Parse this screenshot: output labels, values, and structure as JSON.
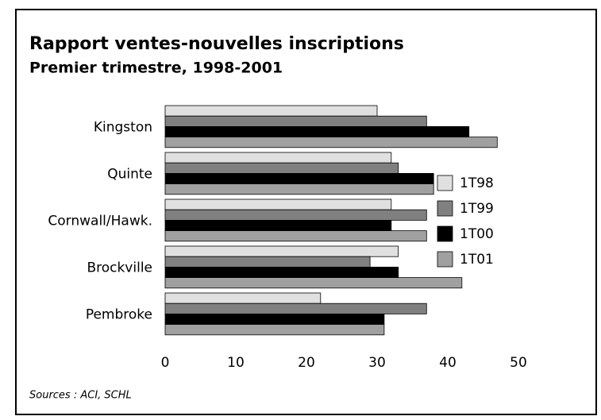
{
  "chart_data": {
    "type": "bar",
    "orientation": "horizontal",
    "title": "Rapport ventes-nouvelles inscriptions",
    "subtitle": "Premier trimestre, 1998-2001",
    "categories": [
      "Kingston",
      "Quinte",
      "Cornwall/Hawk.",
      "Brockville",
      "Pembroke"
    ],
    "series": [
      {
        "name": "1T98",
        "color": "#e0e0e0",
        "values": [
          30,
          32,
          32,
          33,
          22
        ]
      },
      {
        "name": "1T99",
        "color": "#808080",
        "values": [
          37,
          33,
          37,
          29,
          37
        ]
      },
      {
        "name": "1T00",
        "color": "#000000",
        "values": [
          43,
          38,
          32,
          33,
          31
        ]
      },
      {
        "name": "1T01",
        "color": "#a0a0a0",
        "values": [
          47,
          38,
          37,
          42,
          31
        ]
      }
    ],
    "xlim": [
      0,
      50
    ],
    "xticks": [
      0,
      10,
      20,
      30,
      40,
      50
    ],
    "grid": false,
    "legend": "right",
    "source": "Sources : ACI, SCHL"
  }
}
